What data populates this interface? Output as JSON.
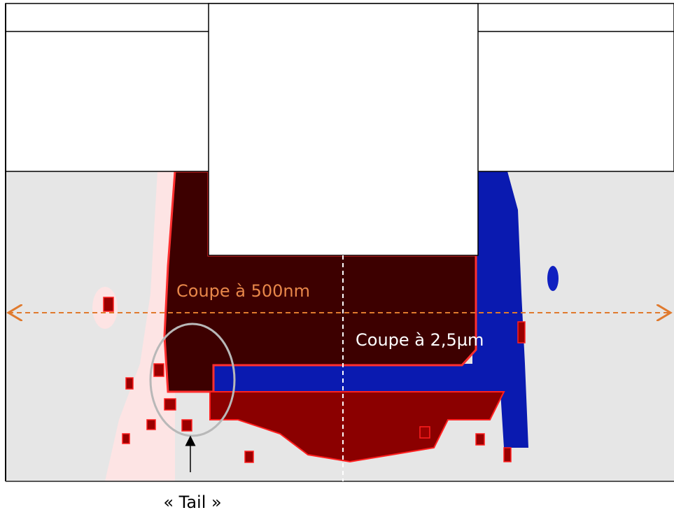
{
  "annotations": {
    "cut_500nm": "Coupe à 500nm",
    "cut_2_5um": "Coupe à 2,5µm",
    "tail": "« Tail »"
  }
}
